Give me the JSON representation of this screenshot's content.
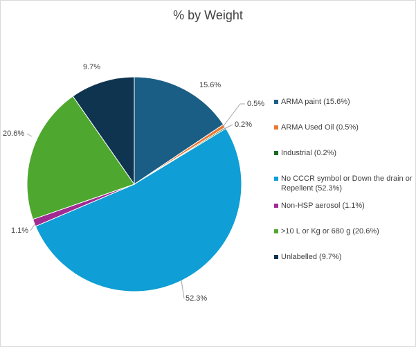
{
  "chart_data": {
    "type": "pie",
    "title": "% by Weight",
    "start_angle_deg": 0,
    "direction": "clockwise",
    "slices": [
      {
        "label": "ARMA paint (15.6%)",
        "value": 15.6,
        "data_label": "15.6%",
        "color": "#1b5e85"
      },
      {
        "label": "ARMA Used Oil (0.5%)",
        "value": 0.5,
        "data_label": "0.5%",
        "color": "#e97832"
      },
      {
        "label": "Industrial (0.2%)",
        "value": 0.2,
        "data_label": "0.2%",
        "color": "#196b24"
      },
      {
        "label": "No CCCR symbol or Down the drain or Repellent (52.3%)",
        "value": 52.3,
        "data_label": "52.3%",
        "color": "#0f9ed5"
      },
      {
        "label": "Non-HSP aerosol (1.1%)",
        "value": 1.1,
        "data_label": "1.1%",
        "color": "#a02b93"
      },
      {
        "label": ">10 L or Kg or 680 g (20.6%)",
        "value": 20.6,
        "data_label": "20.6%",
        "color": "#4ea72e"
      },
      {
        "label": "Unlabelled (9.7%)",
        "value": 9.7,
        "data_label": "9.7%",
        "color": "#0e3450"
      }
    ],
    "legend_position": "right"
  }
}
